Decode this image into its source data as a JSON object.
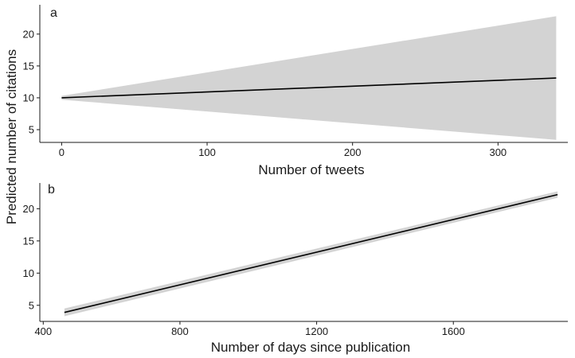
{
  "shared_ylabel": "Predicted number of citations",
  "chart_data": [
    {
      "type": "line",
      "panel_label": "a",
      "xlabel": "Number of tweets",
      "ylabel": "Predicted number of citations",
      "xlim": [
        -15,
        348
      ],
      "ylim": [
        3,
        24.6
      ],
      "xticks": [
        0,
        100,
        200,
        300
      ],
      "yticks": [
        5,
        10,
        15,
        20
      ],
      "series": [
        {
          "x": [
            0,
            340
          ],
          "y": [
            10,
            13.1
          ],
          "ci_lower": [
            9.7,
            3.4
          ],
          "ci_upper": [
            10.3,
            22.8
          ],
          "ci_color": "#d3d3d3",
          "line_color": "#000000"
        }
      ]
    },
    {
      "type": "line",
      "panel_label": "b",
      "xlabel": "Number of days since publication",
      "ylabel": "Predicted number of citations",
      "xlim": [
        390,
        1935
      ],
      "ylim": [
        2.5,
        24
      ],
      "xticks": [
        400,
        800,
        1200,
        1600
      ],
      "yticks": [
        5,
        10,
        15,
        20
      ],
      "series": [
        {
          "x": [
            462,
            1905
          ],
          "y": [
            3.9,
            22.2
          ],
          "ci_lower": [
            3.3,
            21.7
          ],
          "ci_upper": [
            4.5,
            22.7
          ],
          "ci_color": "#d3d3d3",
          "line_color": "#000000"
        }
      ]
    }
  ]
}
